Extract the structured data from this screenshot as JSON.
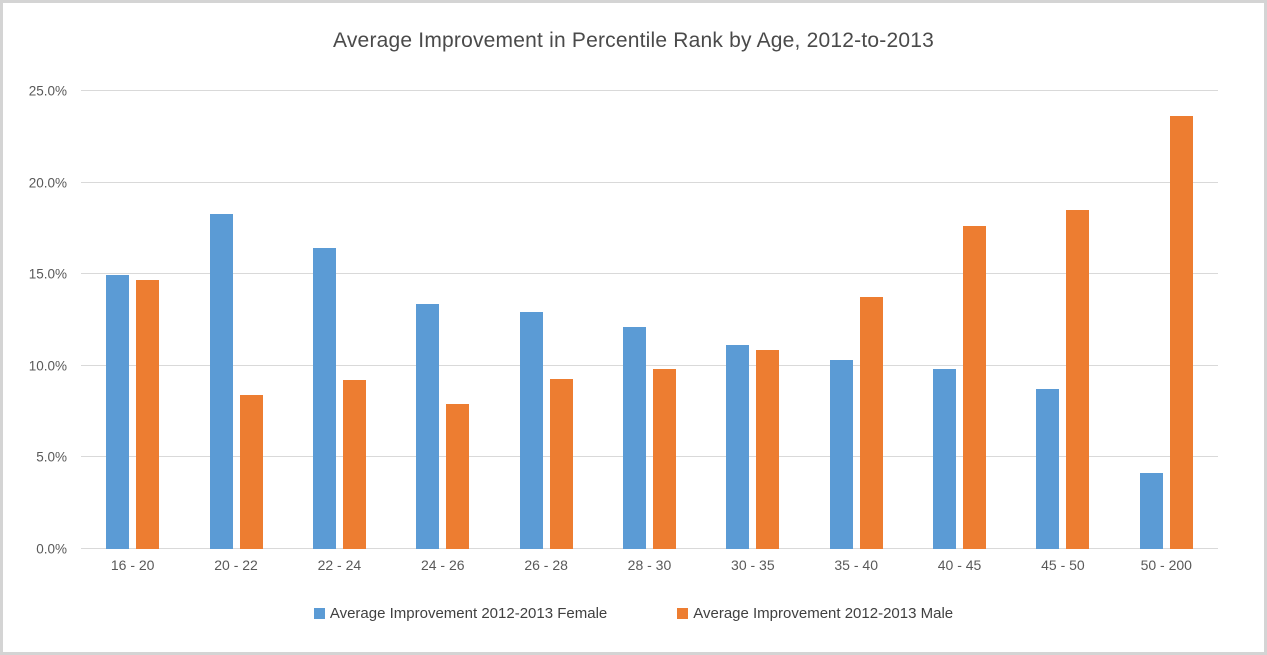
{
  "chart_data": {
    "type": "bar",
    "title": "Average Improvement in Percentile Rank by Age, 2012-to-2013",
    "categories": [
      "16 - 20",
      "20 - 22",
      "22 - 24",
      "24 - 26",
      "26 - 28",
      "28 - 30",
      "30 - 35",
      "35 - 40",
      "40 - 45",
      "45 - 50",
      "50 - 200"
    ],
    "series": [
      {
        "name": "Average Improvement 2012-2013 Female",
        "color": "#5B9BD5",
        "values": [
          14.95,
          18.3,
          16.45,
          13.4,
          12.95,
          12.1,
          11.15,
          10.3,
          9.8,
          8.75,
          4.15
        ]
      },
      {
        "name": "Average Improvement 2012-2013 Male",
        "color": "#ED7D31",
        "values": [
          14.7,
          8.4,
          9.2,
          7.9,
          9.3,
          9.85,
          10.85,
          13.75,
          17.65,
          18.5,
          23.65
        ]
      }
    ],
    "xlabel": "",
    "ylabel": "",
    "ylim": [
      0,
      25
    ],
    "ytick_step": 5,
    "ytick_labels": [
      "0.0%",
      "5.0%",
      "10.0%",
      "15.0%",
      "20.0%",
      "25.0%"
    ],
    "grid": true,
    "legend_position": "bottom",
    "colors": {
      "gridline": "#d9d9d9",
      "text": "#595959",
      "frame_border": "#d4d4d4",
      "background": "#ffffff"
    }
  }
}
